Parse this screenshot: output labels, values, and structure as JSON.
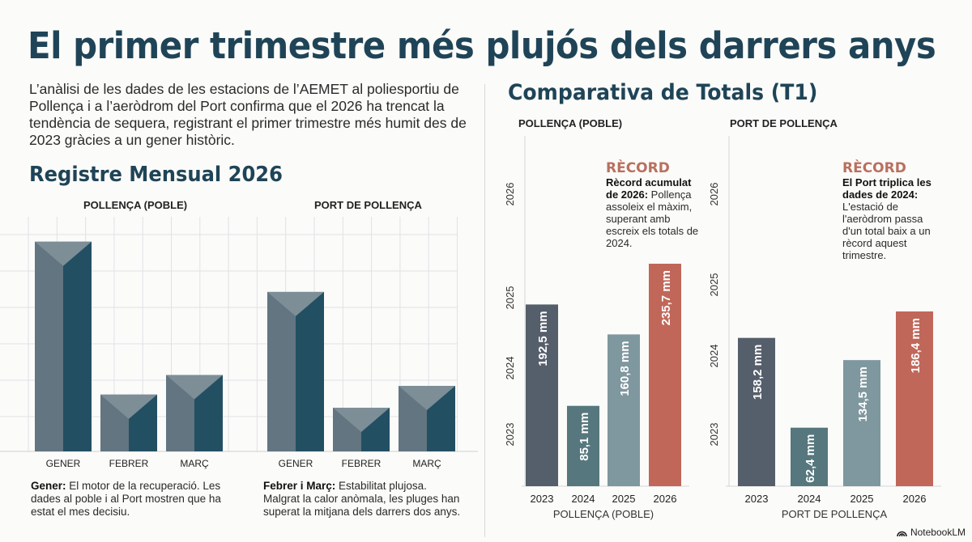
{
  "header": {
    "title": "El primer trimestre més plujós dels darrers anys",
    "intro": "L’anàlisi de les dades de les estacions de l’AEMET al poliesportiu de Pollença i a l’aeròdrom del Port confirma que el 2026 ha trencat la tendència de sequera, registrant el primer trimestre més humit des de 2023 gràcies a un gener històric."
  },
  "monthly": {
    "heading": "Registre Mensual 2026",
    "notes": [
      {
        "bold": "Gener:",
        "text": " El motor de la recuperació. Les dades al poble i al Port mostren que ha estat el mes decisiu."
      },
      {
        "bold": "Febrer i Març:",
        "text": " Estabilitat plujosa. Malgrat la calor anòmala, les pluges han superat la mitjana dels darrers dos anys."
      }
    ]
  },
  "compare": {
    "heading": "Comparativa de Totals (T1)",
    "records": [
      {
        "title": "RÈCORD",
        "bold": "Rècord acumulat de 2026:",
        "text": " Pollença assoleix el màxim, superant amb escreix els totals de 2024."
      },
      {
        "title": "RÈCORD",
        "bold": "El Port triplica les dades de 2024:",
        "text": " L'estació de l'aeròdrom passa d'un total baix a un rècord aquest trimestre."
      }
    ]
  },
  "brand": {
    "label": "NotebookLM",
    "icon": "notebooklm-logo-icon"
  },
  "colors": {
    "title": "#1f4457",
    "bar_light": "#627581",
    "bar_dark": "#234f63",
    "bar_top": "#7d8e97",
    "y2023": "#555e6b",
    "y2024": "#56777d",
    "y2025": "#7f979e",
    "y2026": "#c0675a",
    "record": "#b9705f"
  },
  "chart_data": [
    {
      "type": "bar",
      "title": "POLLENÇA (POBLE)",
      "group": "Registre Mensual 2026",
      "categories": [
        "GENER",
        "FEBRER",
        "MARÇ"
      ],
      "values_relative": [
        0.96,
        0.26,
        0.35
      ],
      "ylabel": "",
      "xlabel": "",
      "grid": true
    },
    {
      "type": "bar",
      "title": "PORT DE POLLENÇA",
      "group": "Registre Mensual 2026",
      "categories": [
        "GENER",
        "FEBRER",
        "MARÇ"
      ],
      "values_relative": [
        0.73,
        0.2,
        0.3
      ],
      "ylabel": "",
      "xlabel": "",
      "grid": true
    },
    {
      "type": "bar",
      "title": "POLLENÇA (POBLE)",
      "group": "Comparativa de Totals (T1)",
      "categories": [
        "2023",
        "2024",
        "2025",
        "2026"
      ],
      "values": [
        192.5,
        85.1,
        160.8,
        235.7
      ],
      "labels": [
        "192,5 mm",
        "85,1 mm",
        "160,8 mm",
        "235,7 mm"
      ],
      "yticks": [
        "2023",
        "2024",
        "2025",
        "2026"
      ],
      "xlabel": "POLLENÇA (POBLE)",
      "ylabel": "",
      "ylim": [
        0,
        235.7
      ],
      "grid": false
    },
    {
      "type": "bar",
      "title": "PORT DE POLLENÇA",
      "group": "Comparativa de Totals (T1)",
      "categories": [
        "2023",
        "2024",
        "2025",
        "2026"
      ],
      "values": [
        158.2,
        62.4,
        134.5,
        186.4
      ],
      "labels": [
        "158,2 mm",
        "62,4 mm",
        "134,5 mm",
        "186,4 mm"
      ],
      "yticks": [
        "2023",
        "2024",
        "2025",
        "2026"
      ],
      "xlabel": "PORT DE POLLENÇA",
      "ylabel": "",
      "ylim": [
        0,
        186.4
      ],
      "grid": false
    }
  ]
}
